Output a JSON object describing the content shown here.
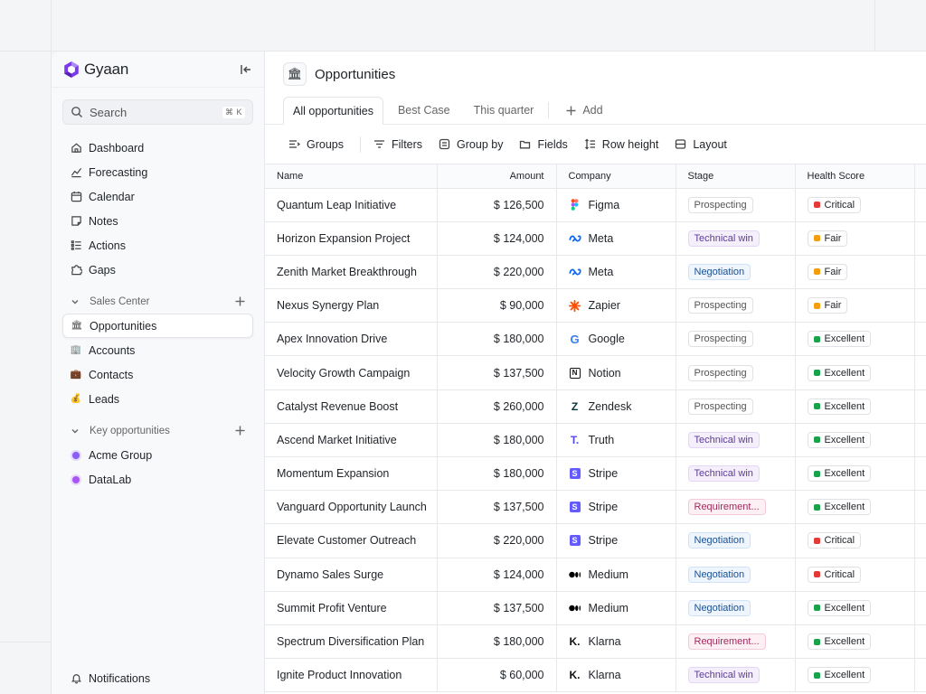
{
  "brand": {
    "name": "Gyaan"
  },
  "search": {
    "placeholder": "Search",
    "shortcut": "⌘ K"
  },
  "nav": [
    {
      "label": "Dashboard",
      "icon": "home-icon"
    },
    {
      "label": "Forecasting",
      "icon": "chart-icon"
    },
    {
      "label": "Calendar",
      "icon": "calendar-icon"
    },
    {
      "label": "Notes",
      "icon": "note-icon"
    },
    {
      "label": "Actions",
      "icon": "list-icon"
    },
    {
      "label": "Gaps",
      "icon": "puzzle-icon"
    }
  ],
  "sales_center": {
    "title": "Sales Center",
    "items": [
      {
        "label": "Opportunities",
        "icon": "bank-icon",
        "active": true
      },
      {
        "label": "Accounts",
        "icon": "building-icon"
      },
      {
        "label": "Contacts",
        "icon": "briefcase-icon"
      },
      {
        "label": "Leads",
        "icon": "money-bag-icon"
      }
    ]
  },
  "key_opportunities": {
    "title": "Key opportunities",
    "items": [
      {
        "label": "Acme Group",
        "color": "#8b5cf6"
      },
      {
        "label": "DataLab",
        "color": "#a855f7"
      }
    ]
  },
  "notifications": {
    "label": "Notifications"
  },
  "page": {
    "title": "Opportunities",
    "icon": "🏛"
  },
  "tabs": [
    {
      "label": "All opportunities",
      "active": true
    },
    {
      "label": "Best Case"
    },
    {
      "label": "This quarter"
    }
  ],
  "add_tab": "Add",
  "toolbar": {
    "groups": "Groups",
    "filters": "Filters",
    "group_by": "Group by",
    "fields": "Fields",
    "row_height": "Row height",
    "layout": "Layout"
  },
  "columns": {
    "name": "Name",
    "amount": "Amount",
    "company": "Company",
    "stage": "Stage",
    "health": "Health Score"
  },
  "colors": {
    "critical": "#e53935",
    "fair": "#f59e0b",
    "excellent": "#16a34a"
  },
  "rows": [
    {
      "name": "Quantum Leap Initiative",
      "amount": "$ 126,500",
      "company": "Figma",
      "stage": "Prospecting",
      "health": "Critical"
    },
    {
      "name": "Horizon Expansion Project",
      "amount": "$ 124,000",
      "company": "Meta",
      "stage": "Technical win",
      "health": "Fair"
    },
    {
      "name": "Zenith Market Breakthrough",
      "amount": "$ 220,000",
      "company": "Meta",
      "stage": "Negotiation",
      "health": "Fair"
    },
    {
      "name": "Nexus Synergy Plan",
      "amount": "$ 90,000",
      "company": "Zapier",
      "stage": "Prospecting",
      "health": "Fair"
    },
    {
      "name": "Apex Innovation Drive",
      "amount": "$ 180,000",
      "company": "Google",
      "stage": "Prospecting",
      "health": "Excellent"
    },
    {
      "name": "Velocity Growth Campaign",
      "amount": "$ 137,500",
      "company": "Notion",
      "stage": "Prospecting",
      "health": "Excellent"
    },
    {
      "name": "Catalyst Revenue Boost",
      "amount": "$ 260,000",
      "company": "Zendesk",
      "stage": "Prospecting",
      "health": "Excellent"
    },
    {
      "name": "Ascend Market Initiative",
      "amount": "$ 180,000",
      "company": "Truth",
      "stage": "Technical win",
      "health": "Excellent"
    },
    {
      "name": "Momentum Expansion",
      "amount": "$ 180,000",
      "company": "Stripe",
      "stage": "Technical win",
      "health": "Excellent"
    },
    {
      "name": "Vanguard Opportunity Launch",
      "amount": "$ 137,500",
      "company": "Stripe",
      "stage": "Requirement...",
      "health": "Excellent"
    },
    {
      "name": "Elevate Customer Outreach",
      "amount": "$ 220,000",
      "company": "Stripe",
      "stage": "Negotiation",
      "health": "Critical"
    },
    {
      "name": "Dynamo Sales Surge",
      "amount": "$ 124,000",
      "company": "Medium",
      "stage": "Negotiation",
      "health": "Critical"
    },
    {
      "name": "Summit Profit Venture",
      "amount": "$ 137,500",
      "company": "Medium",
      "stage": "Negotiation",
      "health": "Excellent"
    },
    {
      "name": "Spectrum Diversification Plan",
      "amount": "$ 180,000",
      "company": "Klarna",
      "stage": "Requirement...",
      "health": "Excellent"
    },
    {
      "name": "Ignite Product Innovation",
      "amount": "$ 60,000",
      "company": "Klarna",
      "stage": "Technical win",
      "health": "Excellent"
    }
  ]
}
